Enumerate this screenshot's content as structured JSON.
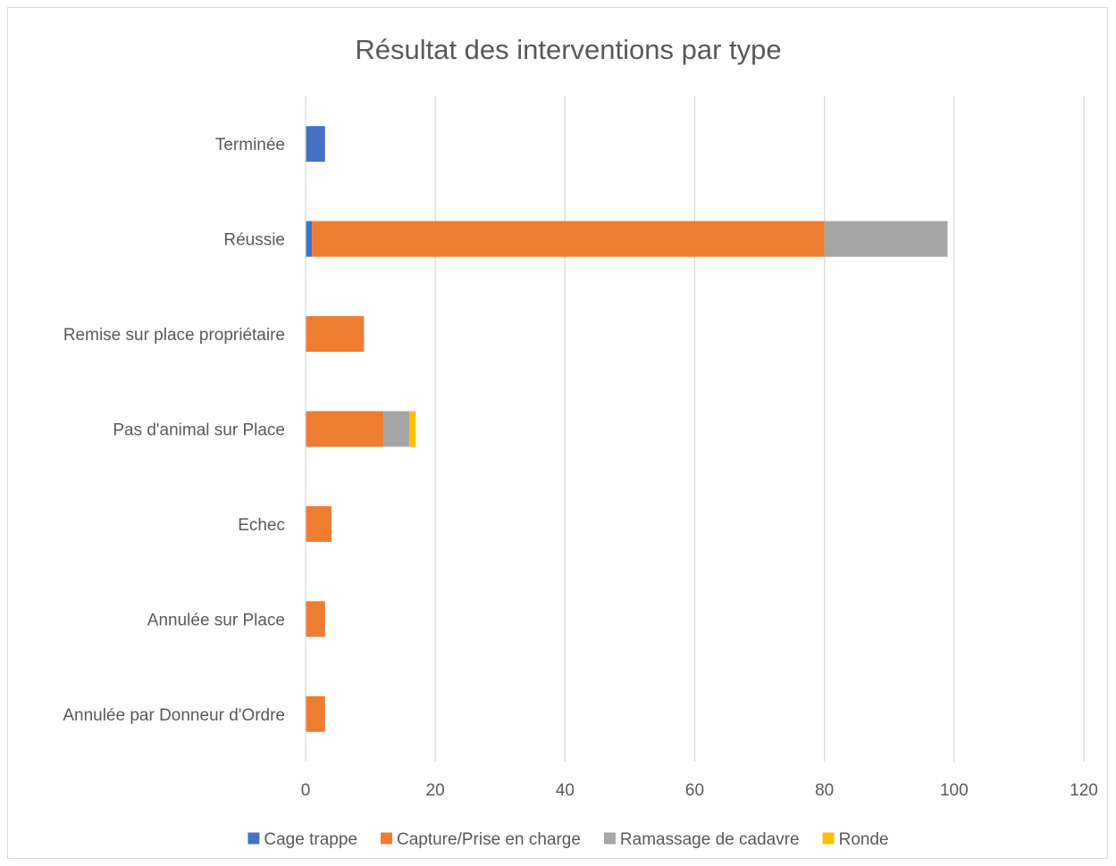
{
  "chart_data": {
    "type": "bar",
    "orientation": "horizontal",
    "stacked": true,
    "title": "Résultat des interventions par type",
    "categories": [
      "Terminée",
      "Réussie",
      "Remise sur place propriétaire",
      "Pas d'animal sur Place",
      "Echec",
      "Annulée sur Place",
      "Annulée par Donneur d'Ordre"
    ],
    "series": [
      {
        "name": "Cage trappe",
        "color": "#4472C4",
        "values": [
          3,
          1,
          0,
          0,
          0,
          0,
          0
        ]
      },
      {
        "name": "Capture/Prise en charge",
        "color": "#ED7D31",
        "values": [
          0,
          79,
          9,
          12,
          4,
          3,
          3
        ]
      },
      {
        "name": "Ramassage de cadavre",
        "color": "#A5A5A5",
        "values": [
          0,
          19,
          0,
          4,
          0,
          0,
          0
        ]
      },
      {
        "name": "Ronde",
        "color": "#FFC000",
        "values": [
          0,
          0,
          0,
          1,
          0,
          0,
          0
        ]
      }
    ],
    "xlim": [
      0,
      120
    ],
    "xticks": [
      0,
      20,
      40,
      60,
      80,
      100,
      120
    ],
    "grid": "vertical",
    "legend_position": "bottom"
  }
}
